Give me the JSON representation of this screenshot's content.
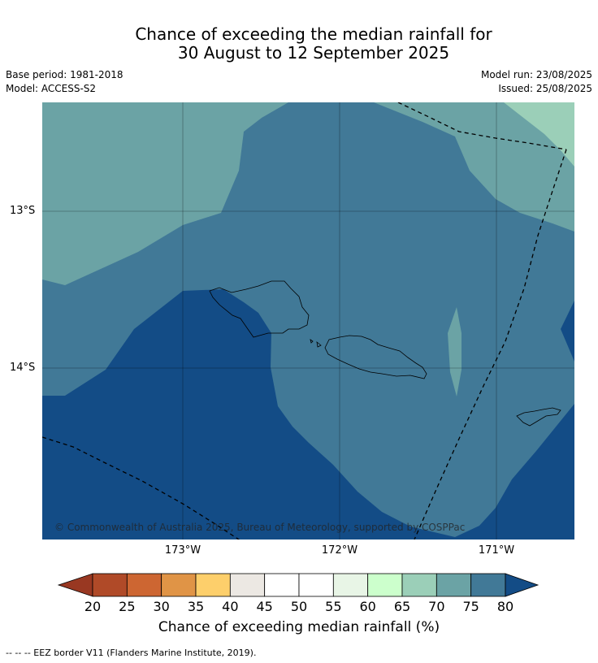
{
  "title": {
    "line1": "Chance of exceeding the median rainfall for",
    "line2": "30 August to 12 September 2025"
  },
  "info": {
    "base_period": "Base period: 1981-2018",
    "model": "Model: ACCESS-S2",
    "model_run": "Model run: 23/08/2025",
    "issued": "Issued: 25/08/2025"
  },
  "map": {
    "lat_labels": [
      "13°S",
      "14°S"
    ],
    "lon_labels": [
      "173°W",
      "172°W",
      "171°W"
    ],
    "copyright": "© Commonwealth of Australia 2025, Bureau of Meteorology, supported by COSPPac",
    "colors": {
      "c65_70": "#9bcfb8",
      "c70_75": "#6ba3a5",
      "c75_80": "#417997",
      "c80_plus": "#134c86"
    }
  },
  "colorbar": {
    "ticks": [
      "20",
      "25",
      "30",
      "35",
      "40",
      "45",
      "50",
      "55",
      "60",
      "65",
      "70",
      "75",
      "80"
    ],
    "under_color": "#993822",
    "over_color": "#134c86",
    "bins": [
      "#b04a28",
      "#cd6632",
      "#e09446",
      "#fdcf6b",
      "#ece8e3",
      "#ffffff",
      "#ffffff",
      "#e8f5e6",
      "#ccffcc",
      "#9bcfb8",
      "#6ba3a5",
      "#417997"
    ],
    "title": "Chance of exceeding median rainfall (%)"
  },
  "footnote": "--  --  -- EEZ border V11 (Flanders Marine Institute, 2019)."
}
